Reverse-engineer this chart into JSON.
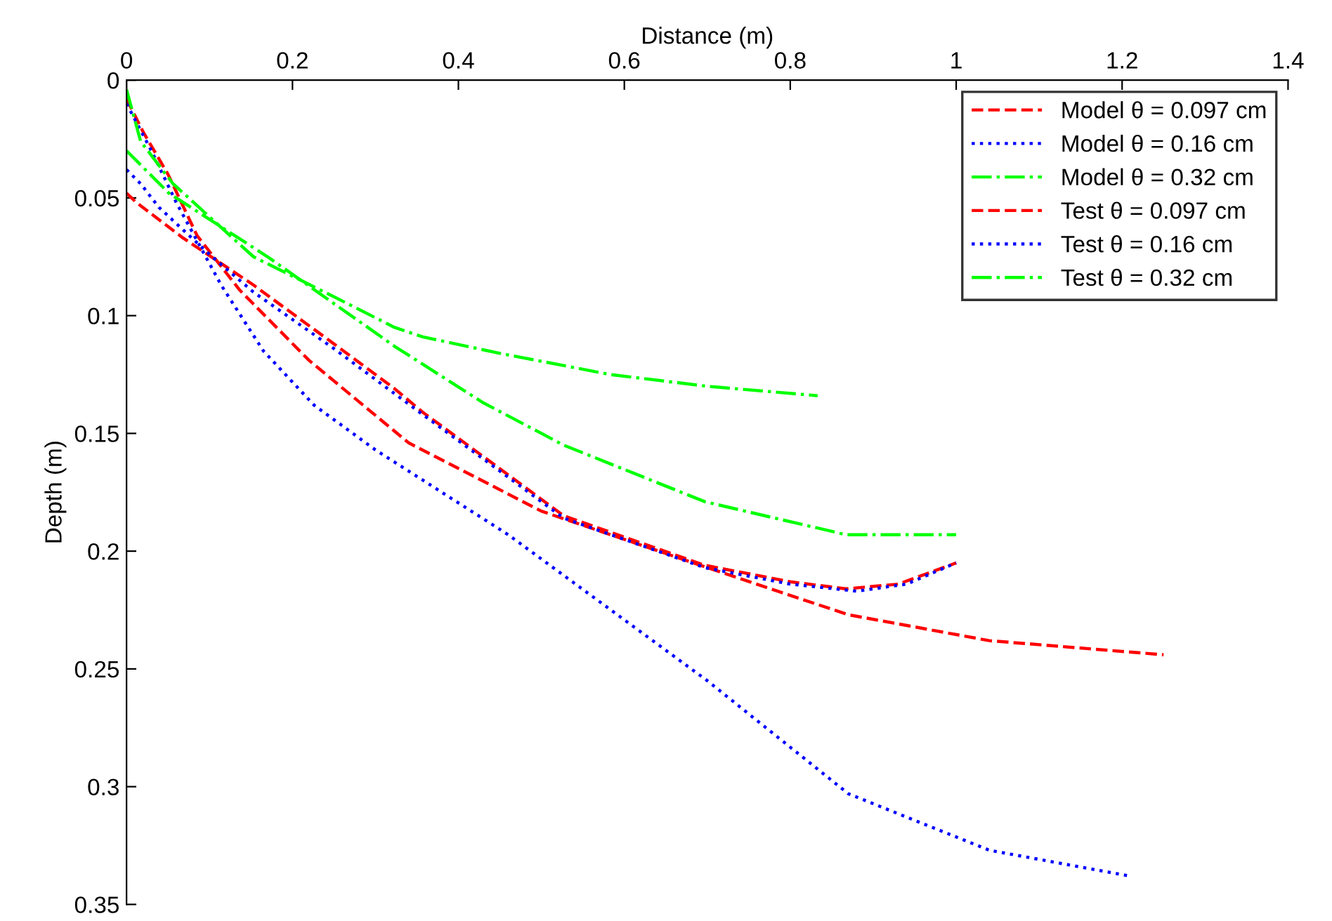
{
  "chart_data": {
    "type": "line",
    "xlabel": "Distance (m)",
    "ylabel": "Depth (m)",
    "xlim": [
      0,
      1.4
    ],
    "xticks": [
      0,
      0.2,
      0.4,
      0.6,
      0.8,
      1,
      1.2,
      1.4
    ],
    "ylim": [
      0.35,
      0
    ],
    "yticks": [
      0,
      0.05,
      0.1,
      0.15,
      0.2,
      0.25,
      0.3,
      0.35
    ],
    "grid": false,
    "legend": "top right",
    "marker": "none",
    "series": [
      {
        "name": "Model θ = 0.097 cm",
        "color": "#ff0000",
        "line_style": "dashed",
        "x": [
          0,
          0.02,
          0.05,
          0.085,
          0.136,
          0.22,
          0.34,
          0.5,
          0.7,
          0.87,
          1.04,
          1.25
        ],
        "values": [
          0.008,
          0.022,
          0.04,
          0.066,
          0.089,
          0.119,
          0.154,
          0.183,
          0.207,
          0.227,
          0.238,
          0.244
        ]
      },
      {
        "name": "Model θ = 0.16 cm",
        "color": "#0000ff",
        "line_style": "dotted",
        "x": [
          0,
          0.03,
          0.06,
          0.114,
          0.165,
          0.226,
          0.3,
          0.46,
          0.7,
          0.87,
          1.04,
          1.21
        ],
        "values": [
          0.01,
          0.03,
          0.052,
          0.087,
          0.115,
          0.138,
          0.157,
          0.193,
          0.255,
          0.303,
          0.327,
          0.338
        ]
      },
      {
        "name": "Model θ = 0.32 cm",
        "color": "#00ff00",
        "line_style": "dashdot",
        "x": [
          0,
          0.017,
          0.056,
          0.153,
          0.25,
          0.323,
          0.357,
          0.45,
          0.583,
          0.7,
          0.833
        ],
        "values": [
          0.004,
          0.026,
          0.044,
          0.075,
          0.092,
          0.105,
          0.109,
          0.116,
          0.125,
          0.13,
          0.134
        ]
      },
      {
        "name": "Test θ = 0.097 cm",
        "color": "#ff0000",
        "line_style": "dashed",
        "x": [
          0,
          0.012,
          0.068,
          0.153,
          0.25,
          0.323,
          0.357,
          0.45,
          0.527,
          0.697,
          0.8,
          0.867,
          0.93,
          1.0
        ],
        "values": [
          0.048,
          0.052,
          0.067,
          0.087,
          0.112,
          0.131,
          0.141,
          0.165,
          0.185,
          0.206,
          0.213,
          0.216,
          0.214,
          0.205
        ]
      },
      {
        "name": "Test θ = 0.16 cm",
        "color": "#0000ff",
        "line_style": "dotted",
        "x": [
          0,
          0.017,
          0.039,
          0.1,
          0.153,
          0.25,
          0.357,
          0.45,
          0.527,
          0.697,
          0.8,
          0.88,
          0.94,
          1.0
        ],
        "values": [
          0.038,
          0.044,
          0.054,
          0.074,
          0.09,
          0.114,
          0.142,
          0.166,
          0.186,
          0.207,
          0.214,
          0.217,
          0.214,
          0.205
        ]
      },
      {
        "name": "Test θ = 0.32 cm",
        "color": "#00ff00",
        "line_style": "dashdot",
        "x": [
          0,
          0.051,
          0.17,
          0.323,
          0.43,
          0.527,
          0.697,
          0.867,
          1.0
        ],
        "values": [
          0.03,
          0.048,
          0.075,
          0.113,
          0.137,
          0.155,
          0.179,
          0.193,
          0.193
        ]
      }
    ]
  }
}
